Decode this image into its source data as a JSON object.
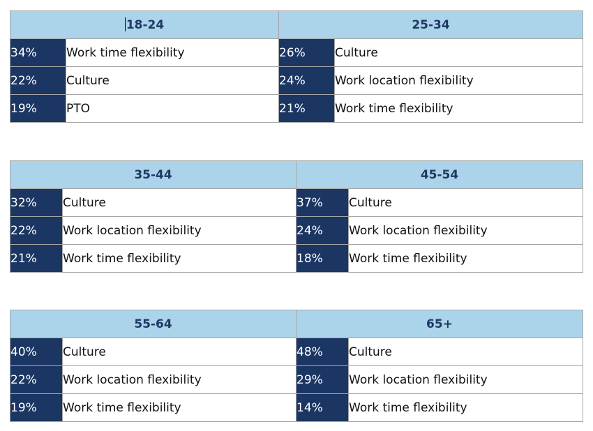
{
  "groups": [
    {
      "left": {
        "age": "18-24",
        "rows": [
          {
            "pct": "34%",
            "label": "Work time flexibility"
          },
          {
            "pct": "22%",
            "label": "Culture"
          },
          {
            "pct": "19%",
            "label": "PTO"
          }
        ]
      },
      "right": {
        "age": "25-34",
        "rows": [
          {
            "pct": "26%",
            "label": "Culture"
          },
          {
            "pct": "24%",
            "label": "Work location flexibility"
          },
          {
            "pct": "21%",
            "label": "Work time flexibility"
          }
        ]
      }
    },
    {
      "left": {
        "age": "35-44",
        "rows": [
          {
            "pct": "32%",
            "label": "Culture"
          },
          {
            "pct": "22%",
            "label": "Work location flexibility"
          },
          {
            "pct": "21%",
            "label": "Work time flexibility"
          }
        ]
      },
      "right": {
        "age": "45-54",
        "rows": [
          {
            "pct": "37%",
            "label": "Culture"
          },
          {
            "pct": "24%",
            "label": "Work location flexibility"
          },
          {
            "pct": "18%",
            "label": "Work time flexibility"
          }
        ]
      }
    },
    {
      "left": {
        "age": "55-64",
        "rows": [
          {
            "pct": "40%",
            "label": "Culture"
          },
          {
            "pct": "22%",
            "label": "Work location flexibility"
          },
          {
            "pct": "19%",
            "label": "Work time flexibility"
          }
        ]
      },
      "right": {
        "age": "65+",
        "rows": [
          {
            "pct": "48%",
            "label": "Culture"
          },
          {
            "pct": "29%",
            "label": "Work location flexibility"
          },
          {
            "pct": "14%",
            "label": "Work time flexibility"
          }
        ]
      }
    }
  ]
}
